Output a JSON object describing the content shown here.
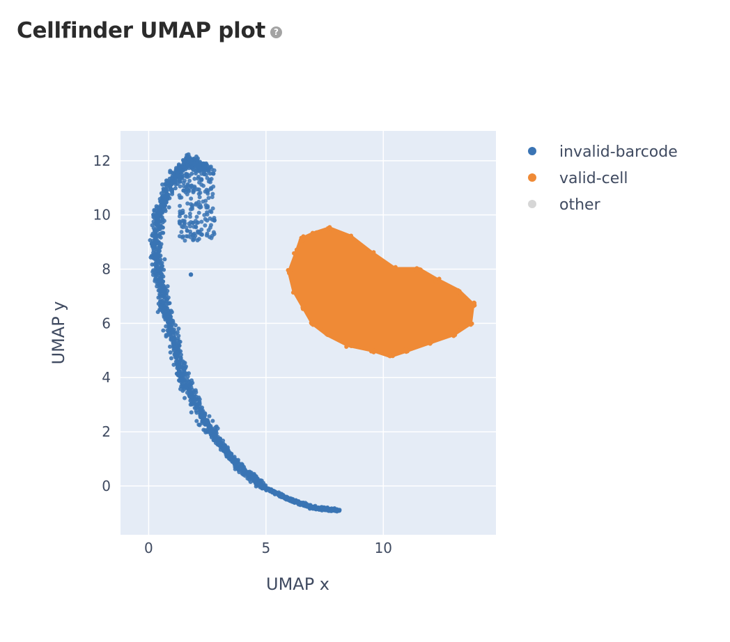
{
  "header": {
    "title": "Cellfinder UMAP plot",
    "help_icon": "help-circle-icon",
    "help_glyph": "?"
  },
  "chart_data": {
    "type": "scatter",
    "title": "",
    "xlabel": "UMAP x",
    "ylabel": "UMAP y",
    "xlim": [
      -1.2,
      14.8
    ],
    "ylim": [
      -1.8,
      13.1
    ],
    "xticks": [
      0,
      5,
      10
    ],
    "yticks": [
      0,
      2,
      4,
      6,
      8,
      10,
      12
    ],
    "grid": true,
    "legend_position": "right",
    "background": "#e5ecf6",
    "series": [
      {
        "name": "invalid-barcode",
        "color": "#3a74b4",
        "shape": "curved-band",
        "spine": [
          [
            8.1,
            -0.9
          ],
          [
            7,
            -0.8
          ],
          [
            6,
            -0.5
          ],
          [
            5,
            -0.1
          ],
          [
            4,
            0.6
          ],
          [
            3,
            1.6
          ],
          [
            2.2,
            2.7
          ],
          [
            1.5,
            4.0
          ],
          [
            1.0,
            5.5
          ],
          [
            0.6,
            7.0
          ],
          [
            0.3,
            8.5
          ],
          [
            0.4,
            10.0
          ],
          [
            1.0,
            11.3
          ],
          [
            1.7,
            12.0
          ],
          [
            2.4,
            11.7
          ]
        ],
        "sample_points": [
          [
            0.2,
            8.5
          ],
          [
            1.6,
            12.1
          ],
          [
            2.8,
            9.8
          ],
          [
            1.8,
            7.8
          ],
          [
            1.2,
            4.5
          ],
          [
            2.5,
            2.0
          ],
          [
            5.0,
            -0.1
          ],
          [
            8.1,
            -0.9
          ]
        ]
      },
      {
        "name": "valid-cell",
        "color": "#ef8a36",
        "shape": "blob",
        "boundary": [
          [
            6.0,
            7.9
          ],
          [
            6.3,
            8.6
          ],
          [
            6.5,
            9.1
          ],
          [
            7.0,
            9.3
          ],
          [
            7.7,
            9.5
          ],
          [
            8.6,
            9.2
          ],
          [
            9.5,
            8.6
          ],
          [
            10.5,
            8.0
          ],
          [
            11.5,
            8.0
          ],
          [
            12.3,
            7.6
          ],
          [
            13.2,
            7.2
          ],
          [
            13.8,
            6.7
          ],
          [
            13.7,
            6.0
          ],
          [
            13.0,
            5.6
          ],
          [
            12.0,
            5.3
          ],
          [
            11.0,
            5.0
          ],
          [
            10.3,
            4.8
          ],
          [
            9.6,
            5.0
          ],
          [
            8.5,
            5.2
          ],
          [
            7.6,
            5.6
          ],
          [
            7.0,
            6.0
          ],
          [
            6.6,
            6.6
          ],
          [
            6.2,
            7.2
          ]
        ],
        "sample_points": [
          [
            6.0,
            7.9
          ],
          [
            7.7,
            9.5
          ],
          [
            11.4,
            8.0
          ],
          [
            13.7,
            6.7
          ],
          [
            10.4,
            4.8
          ],
          [
            9.5,
            6.5
          ]
        ]
      },
      {
        "name": "other",
        "color": "#d6d6d6",
        "points": []
      }
    ]
  }
}
